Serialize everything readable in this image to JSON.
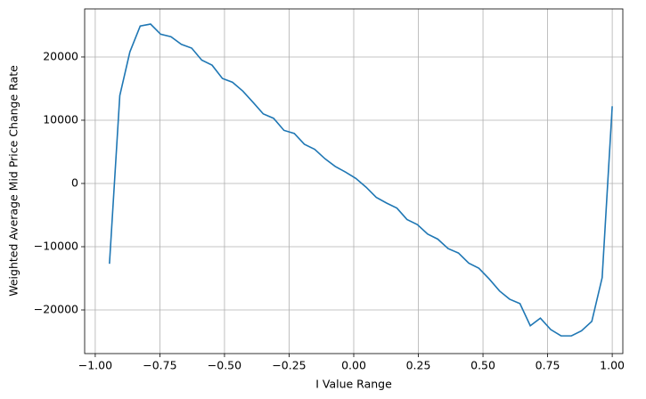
{
  "chart_data": {
    "type": "line",
    "x_label": "I Value Range",
    "y_label": "Weighted Average Mid Price Change Rate",
    "x": [
      -0.945,
      -0.905,
      -0.866,
      -0.826,
      -0.786,
      -0.747,
      -0.707,
      -0.667,
      -0.627,
      -0.588,
      -0.548,
      -0.508,
      -0.469,
      -0.429,
      -0.389,
      -0.35,
      -0.31,
      -0.27,
      -0.23,
      -0.191,
      -0.151,
      -0.111,
      -0.072,
      -0.032,
      0.008,
      0.048,
      0.087,
      0.127,
      0.167,
      0.206,
      0.246,
      0.286,
      0.325,
      0.365,
      0.405,
      0.445,
      0.484,
      0.524,
      0.564,
      0.603,
      0.643,
      0.683,
      0.722,
      0.762,
      0.802,
      0.842,
      0.881,
      0.921,
      0.961,
      1.0
    ],
    "series": [
      {
        "color": "#1f77b4",
        "values": [
          -12700,
          13900,
          20800,
          24900,
          25200,
          23600,
          23200,
          22000,
          21400,
          19500,
          18700,
          16600,
          16000,
          14600,
          12800,
          11000,
          10300,
          8400,
          7900,
          6200,
          5400,
          3900,
          2700,
          1800,
          800,
          -600,
          -2200,
          -3100,
          -3900,
          -5700,
          -6500,
          -8000,
          -8800,
          -10300,
          -11000,
          -12600,
          -13400,
          -15100,
          -17000,
          -18300,
          -19000,
          -22500,
          -21300,
          -23100,
          -24100,
          -24100,
          -23300,
          -21800,
          -14900,
          12200
        ]
      }
    ],
    "xlim": [
      -1.041,
      1.041
    ],
    "ylim": [
      -26900,
      27600
    ],
    "xticks": [
      {
        "value": -1,
        "label": "−1.00"
      },
      {
        "value": -0.75,
        "label": "−0.75"
      },
      {
        "value": -0.5,
        "label": "−0.50"
      },
      {
        "value": -0.25,
        "label": "−0.25"
      },
      {
        "value": 0,
        "label": "0.00"
      },
      {
        "value": 0.25,
        "label": "0.25"
      },
      {
        "value": 0.5,
        "label": "0.50"
      },
      {
        "value": 0.75,
        "label": "0.75"
      },
      {
        "value": 1,
        "label": "1.00"
      }
    ],
    "yticks": [
      {
        "value": -20000,
        "label": "−20000"
      },
      {
        "value": -10000,
        "label": "−10000"
      },
      0,
      10000,
      20000
    ],
    "grid": true
  }
}
